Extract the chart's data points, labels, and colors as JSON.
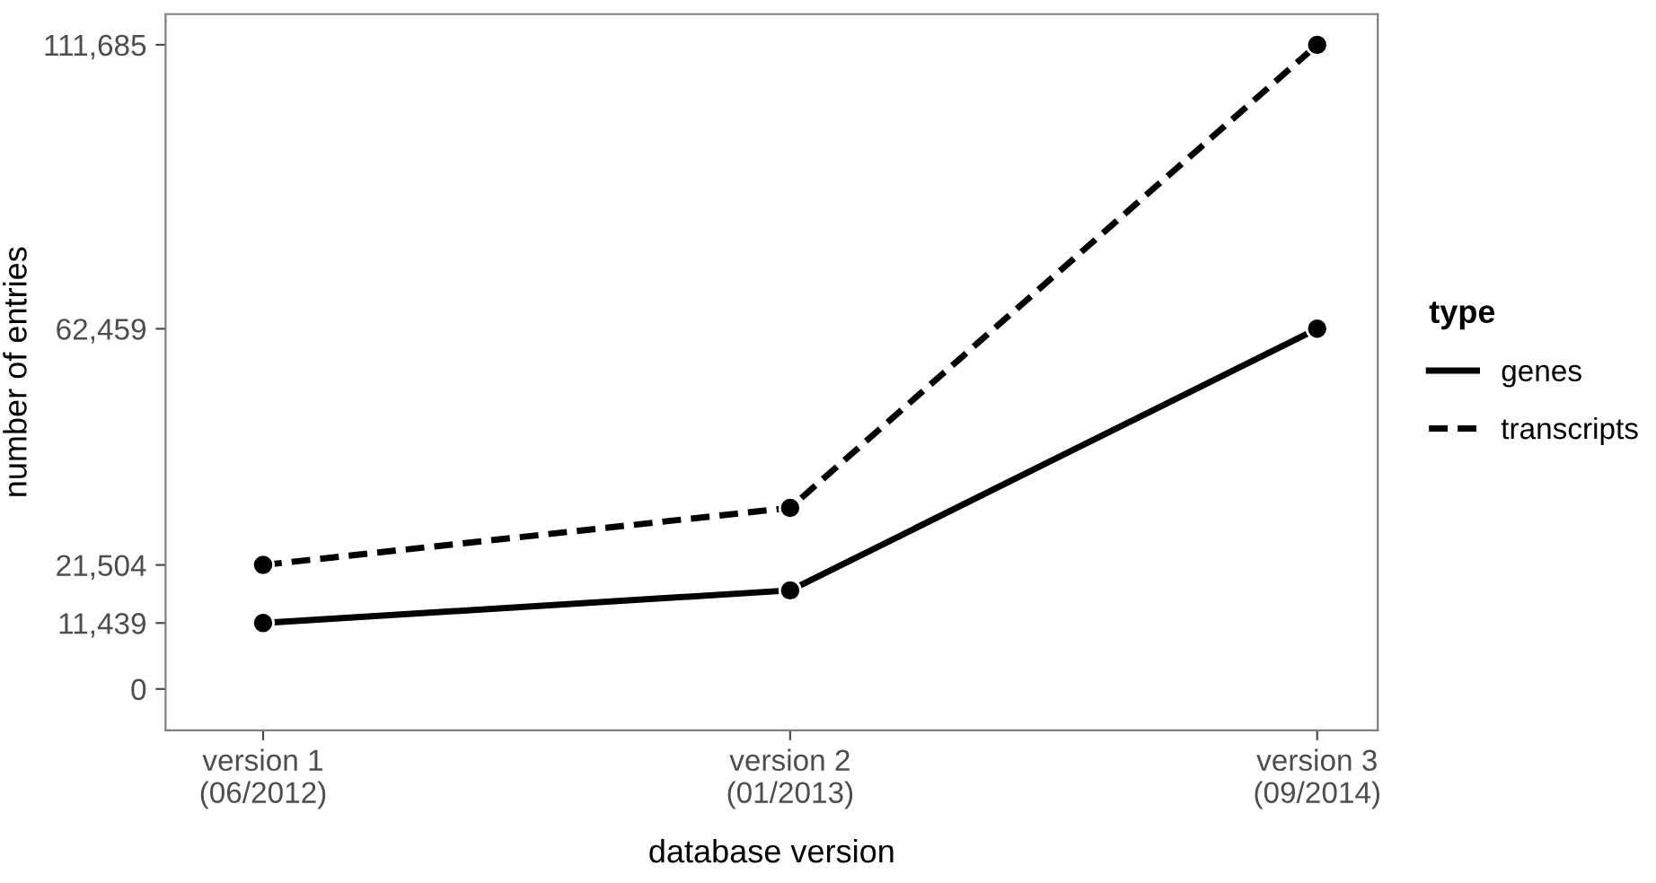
{
  "chart_data": {
    "type": "line",
    "xlabel": "database version",
    "ylabel": "number of entries",
    "legend_title": "type",
    "categories": [
      "version 1\n(06/2012)",
      "version 2\n(01/2013)",
      "version 3\n(09/2014)"
    ],
    "series": [
      {
        "name": "genes",
        "color": "#000000",
        "line_style": "solid",
        "values": [
          11439,
          17100,
          62459
        ]
      },
      {
        "name": "transcripts",
        "color": "#000000",
        "line_style": "dashed",
        "values": [
          21504,
          31400,
          111685
        ]
      }
    ],
    "ylim": [
      -7150,
      117000
    ],
    "yticks": [
      0,
      {
        "value": 11439,
        "label": "11,439"
      },
      {
        "value": 21504,
        "label": "21,504"
      },
      {
        "value": 62459,
        "label": "62,459"
      },
      {
        "value": 111685,
        "label": "111,685"
      }
    ],
    "marker": "circle",
    "grid": false,
    "legend": "right"
  }
}
